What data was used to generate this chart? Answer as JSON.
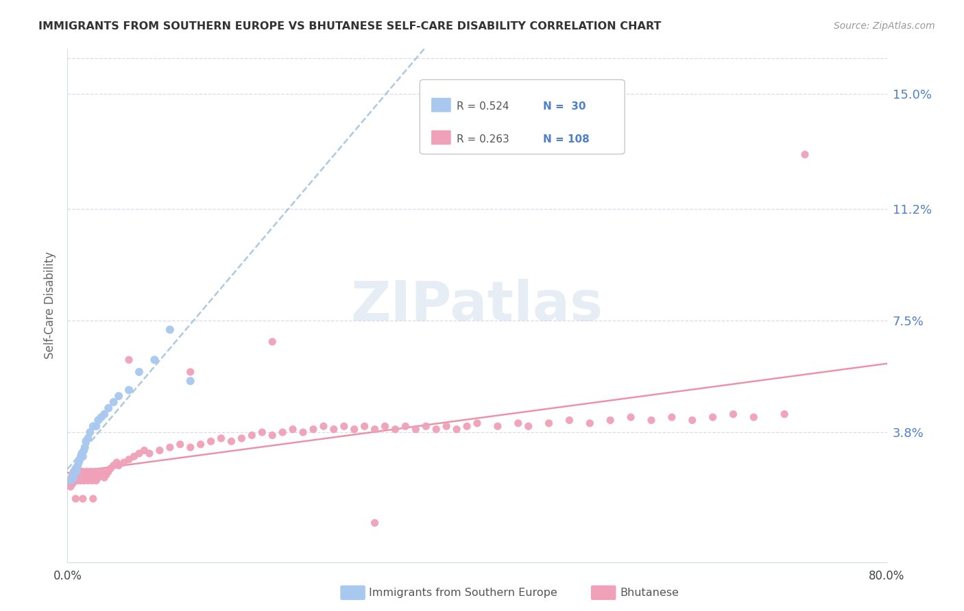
{
  "title": "IMMIGRANTS FROM SOUTHERN EUROPE VS BHUTANESE SELF-CARE DISABILITY CORRELATION CHART",
  "source": "Source: ZipAtlas.com",
  "ylabel": "Self-Care Disability",
  "blue_color": "#a8c8f0",
  "pink_color": "#f0a0b8",
  "trend_blue_color": "#90b8d8",
  "trend_pink_color": "#e88098",
  "grid_color": "#d8dce8",
  "text_color": "#5080c8",
  "title_color": "#333333",
  "source_color": "#999999",
  "ytick_vals": [
    0.038,
    0.075,
    0.112,
    0.15
  ],
  "ytick_labels": [
    "3.8%",
    "7.5%",
    "11.2%",
    "15.0%"
  ],
  "xlim": [
    0.0,
    0.8
  ],
  "ylim": [
    -0.005,
    0.165
  ],
  "blue_x": [
    0.003,
    0.005,
    0.006,
    0.007,
    0.008,
    0.009,
    0.01,
    0.011,
    0.012,
    0.013,
    0.014,
    0.015,
    0.016,
    0.017,
    0.018,
    0.02,
    0.022,
    0.025,
    0.028,
    0.03,
    0.033,
    0.036,
    0.04,
    0.045,
    0.05,
    0.06,
    0.07,
    0.085,
    0.1,
    0.12
  ],
  "blue_y": [
    0.022,
    0.024,
    0.023,
    0.025,
    0.026,
    0.025,
    0.027,
    0.028,
    0.029,
    0.03,
    0.031,
    0.03,
    0.032,
    0.033,
    0.035,
    0.036,
    0.038,
    0.04,
    0.04,
    0.042,
    0.043,
    0.044,
    0.046,
    0.048,
    0.05,
    0.052,
    0.058,
    0.062,
    0.072,
    0.055
  ],
  "pink_x": [
    0.002,
    0.003,
    0.004,
    0.005,
    0.005,
    0.006,
    0.006,
    0.007,
    0.007,
    0.008,
    0.008,
    0.009,
    0.009,
    0.01,
    0.01,
    0.011,
    0.011,
    0.012,
    0.012,
    0.013,
    0.013,
    0.014,
    0.015,
    0.015,
    0.016,
    0.017,
    0.018,
    0.019,
    0.02,
    0.021,
    0.022,
    0.023,
    0.024,
    0.025,
    0.026,
    0.027,
    0.028,
    0.03,
    0.032,
    0.034,
    0.036,
    0.038,
    0.04,
    0.042,
    0.045,
    0.048,
    0.05,
    0.055,
    0.06,
    0.065,
    0.07,
    0.075,
    0.08,
    0.09,
    0.1,
    0.11,
    0.12,
    0.13,
    0.14,
    0.15,
    0.16,
    0.17,
    0.18,
    0.19,
    0.2,
    0.21,
    0.22,
    0.23,
    0.24,
    0.25,
    0.26,
    0.27,
    0.28,
    0.29,
    0.3,
    0.31,
    0.32,
    0.33,
    0.34,
    0.35,
    0.36,
    0.37,
    0.38,
    0.39,
    0.4,
    0.42,
    0.44,
    0.45,
    0.47,
    0.49,
    0.51,
    0.53,
    0.55,
    0.57,
    0.59,
    0.61,
    0.63,
    0.65,
    0.67,
    0.7,
    0.72,
    0.008,
    0.015,
    0.025,
    0.06,
    0.12,
    0.2,
    0.3
  ],
  "pink_y": [
    0.022,
    0.02,
    0.023,
    0.021,
    0.024,
    0.022,
    0.025,
    0.023,
    0.024,
    0.022,
    0.023,
    0.024,
    0.025,
    0.022,
    0.023,
    0.024,
    0.025,
    0.023,
    0.024,
    0.025,
    0.022,
    0.023,
    0.024,
    0.025,
    0.022,
    0.023,
    0.024,
    0.025,
    0.022,
    0.023,
    0.024,
    0.025,
    0.022,
    0.023,
    0.024,
    0.025,
    0.022,
    0.023,
    0.024,
    0.025,
    0.023,
    0.024,
    0.025,
    0.026,
    0.027,
    0.028,
    0.027,
    0.028,
    0.029,
    0.03,
    0.031,
    0.032,
    0.031,
    0.032,
    0.033,
    0.034,
    0.033,
    0.034,
    0.035,
    0.036,
    0.035,
    0.036,
    0.037,
    0.038,
    0.037,
    0.038,
    0.039,
    0.038,
    0.039,
    0.04,
    0.039,
    0.04,
    0.039,
    0.04,
    0.039,
    0.04,
    0.039,
    0.04,
    0.039,
    0.04,
    0.039,
    0.04,
    0.039,
    0.04,
    0.041,
    0.04,
    0.041,
    0.04,
    0.041,
    0.042,
    0.041,
    0.042,
    0.043,
    0.042,
    0.043,
    0.042,
    0.043,
    0.044,
    0.043,
    0.044,
    0.13,
    0.016,
    0.016,
    0.016,
    0.062,
    0.058,
    0.068,
    0.008
  ],
  "blue_trend_x": [
    0.0,
    0.22
  ],
  "blue_trend_y_intercept": 0.02,
  "blue_trend_slope": 0.28,
  "pink_trend_x": [
    0.0,
    0.8
  ],
  "pink_trend_y_intercept": 0.022,
  "pink_trend_slope": 0.03
}
